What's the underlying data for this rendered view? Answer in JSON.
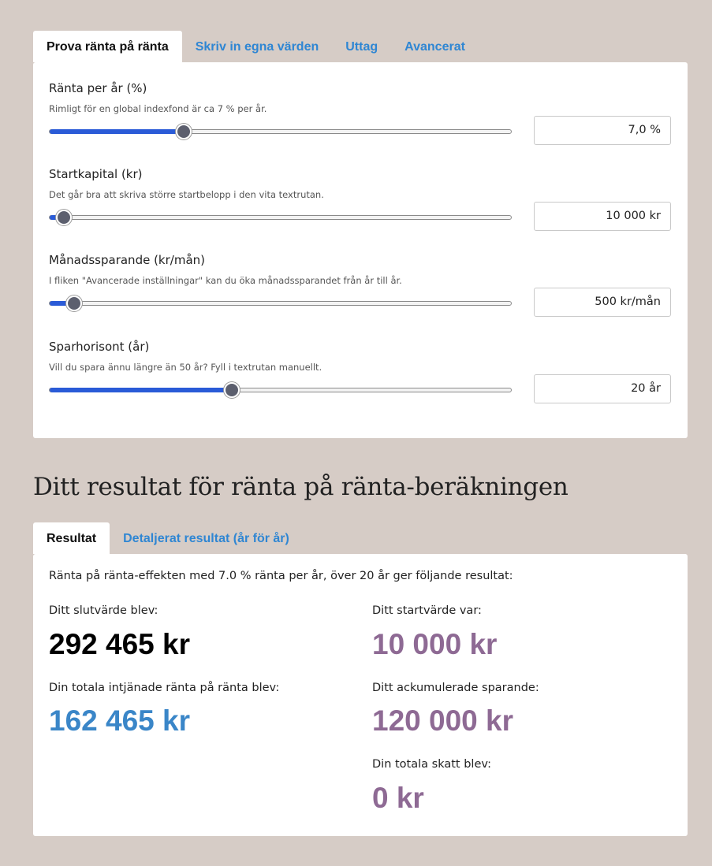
{
  "input_tabs": [
    {
      "label": "Prova ränta på ränta",
      "active": true
    },
    {
      "label": "Skriv in egna värden",
      "active": false
    },
    {
      "label": "Uttag",
      "active": false
    },
    {
      "label": "Avancerat",
      "active": false
    }
  ],
  "fields": {
    "interest": {
      "label": "Ränta per år (%)",
      "hint": "Rimligt för en global indexfond är ca 7 % per år.",
      "value": "7,0 %",
      "slider_fraction": 0.287
    },
    "start_capital": {
      "label": "Startkapital (kr)",
      "hint": "Det går bra att skriva större startbelopp i den vita textrutan.",
      "value": "10 000 kr",
      "slider_fraction": 0.027
    },
    "monthly_saving": {
      "label": "Månadssparande (kr/mån)",
      "hint": "I fliken \"Avancerade inställningar\" kan du öka månadssparandet från år till år.",
      "value": "500 kr/mån",
      "slider_fraction": 0.049
    },
    "horizon": {
      "label": "Sparhorisont (år)",
      "hint": "Vill du spara ännu längre än 50 år? Fyll i textrutan manuellt.",
      "value": "20 år",
      "slider_fraction": 0.391
    }
  },
  "results_heading": "Ditt resultat för ränta på ränta-beräkningen",
  "result_tabs": [
    {
      "label": "Resultat",
      "active": true
    },
    {
      "label": "Detaljerat resultat (år för år)",
      "active": false
    }
  ],
  "results": {
    "summary": "Ränta på ränta-effekten med 7.0 % ränta per år, över 20 år ger följande resultat:",
    "end_value": {
      "label": "Ditt slutvärde blev:",
      "value": "292 465 kr"
    },
    "total_interest": {
      "label": "Din totala intjänade ränta på ränta blev:",
      "value": "162 465 kr"
    },
    "start_value": {
      "label": "Ditt startvärde var:",
      "value": "10 000 kr"
    },
    "accumulated_savings": {
      "label": "Ditt ackumulerade sparande:",
      "value": "120 000 kr"
    },
    "total_tax": {
      "label": "Din totala skatt blev:",
      "value": "0 kr"
    }
  },
  "colors": {
    "background": "#d6ccc6",
    "accent_blue": "#2f86d3",
    "slider_fill": "#2a5bd7",
    "end_value": "#000000",
    "interest_value": "#3a86c8",
    "purple_value": "#8e6a94"
  }
}
